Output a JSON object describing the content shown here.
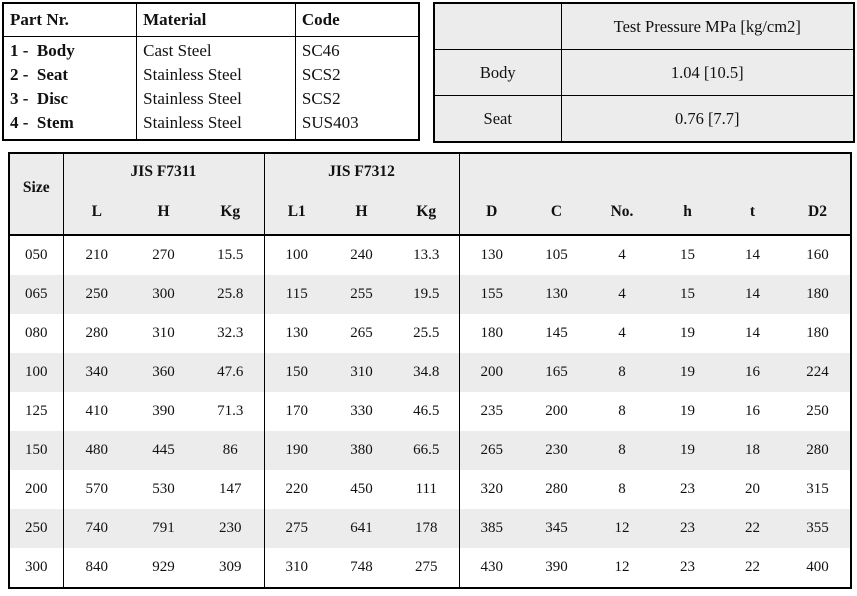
{
  "colors": {
    "band_gray": "#ececec",
    "border": "#000000",
    "text": "#111111",
    "page_background": "#ffffff"
  },
  "parts_table": {
    "headers": [
      "Part Nr.",
      "Material",
      "Code"
    ],
    "rows": [
      {
        "part": "1 -  Body",
        "material": "Cast Steel",
        "code": "SC46"
      },
      {
        "part": "2 -  Seat",
        "material": "Stainless Steel",
        "code": "SCS2"
      },
      {
        "part": "3 -  Disc",
        "material": "Stainless Steel",
        "code": "SCS2"
      },
      {
        "part": "4 -  Stem",
        "material": "Stainless Steel",
        "code": "SUS403"
      }
    ]
  },
  "pressure_table": {
    "header": "Test Pressure MPa [kg/cm2]",
    "rows": [
      {
        "label": "Body",
        "value": "1.04 [10.5]"
      },
      {
        "label": "Seat",
        "value": "0.76 [7.7]"
      }
    ]
  },
  "dimensions_table": {
    "group_headers": [
      "JIS F7311",
      "JIS F7312"
    ],
    "columns": [
      "Size",
      "L",
      "H",
      "Kg",
      "L1",
      "H",
      "Kg",
      "D",
      "C",
      "No.",
      "h",
      "t",
      "D2"
    ],
    "rows": [
      [
        "050",
        "210",
        "270",
        "15.5",
        "100",
        "240",
        "13.3",
        "130",
        "105",
        "4",
        "15",
        "14",
        "160"
      ],
      [
        "065",
        "250",
        "300",
        "25.8",
        "115",
        "255",
        "19.5",
        "155",
        "130",
        "4",
        "15",
        "14",
        "180"
      ],
      [
        "080",
        "280",
        "310",
        "32.3",
        "130",
        "265",
        "25.5",
        "180",
        "145",
        "4",
        "19",
        "14",
        "180"
      ],
      [
        "100",
        "340",
        "360",
        "47.6",
        "150",
        "310",
        "34.8",
        "200",
        "165",
        "8",
        "19",
        "16",
        "224"
      ],
      [
        "125",
        "410",
        "390",
        "71.3",
        "170",
        "330",
        "46.5",
        "235",
        "200",
        "8",
        "19",
        "16",
        "250"
      ],
      [
        "150",
        "480",
        "445",
        "86",
        "190",
        "380",
        "66.5",
        "265",
        "230",
        "8",
        "19",
        "18",
        "280"
      ],
      [
        "200",
        "570",
        "530",
        "147",
        "220",
        "450",
        "111",
        "320",
        "280",
        "8",
        "23",
        "20",
        "315"
      ],
      [
        "250",
        "740",
        "791",
        "230",
        "275",
        "641",
        "178",
        "385",
        "345",
        "12",
        "23",
        "22",
        "355"
      ],
      [
        "300",
        "840",
        "929",
        "309",
        "310",
        "748",
        "275",
        "430",
        "390",
        "12",
        "23",
        "22",
        "400"
      ]
    ]
  }
}
